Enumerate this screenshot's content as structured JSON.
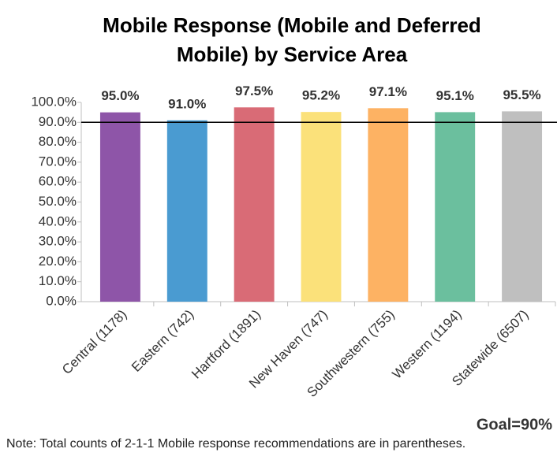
{
  "chart_data": {
    "type": "bar",
    "title": "Mobile Response (Mobile and Deferred Mobile) by Service Area",
    "categories": [
      "Central (1178)",
      "Eastern (742)",
      "Hartford (1891)",
      "New Haven (747)",
      "Southwestern (755)",
      "Western (1194)",
      "Statewide (6507)"
    ],
    "values": [
      95.0,
      91.0,
      97.5,
      95.2,
      97.1,
      95.1,
      95.5
    ],
    "value_labels": [
      "95.0%",
      "91.0%",
      "97.5%",
      "95.2%",
      "97.1%",
      "95.1%",
      "95.5%"
    ],
    "colors": [
      "#8e55a8",
      "#4a9bd1",
      "#d96b76",
      "#fbe17a",
      "#fdb263",
      "#6bbf9e",
      "#bfbfbf"
    ],
    "ylim": [
      0,
      100
    ],
    "yticks": [
      {
        "value": 0,
        "label": "0.0%"
      },
      {
        "value": 10,
        "label": "10.0%"
      },
      {
        "value": 20,
        "label": "20.0%"
      },
      {
        "value": 30,
        "label": "30.0%"
      },
      {
        "value": 40,
        "label": "40.0%"
      },
      {
        "value": 50,
        "label": "50.0%"
      },
      {
        "value": 60,
        "label": "60.0%"
      },
      {
        "value": 70,
        "label": "70.0%"
      },
      {
        "value": 80,
        "label": "80.0%"
      },
      {
        "value": 90,
        "label": "90.0%"
      },
      {
        "value": 100,
        "label": "100.0%"
      }
    ],
    "grid": false,
    "goal": 90,
    "goal_label": "Goal=90%",
    "note": "Note: Total counts of 2-1-1 Mobile response recommendations are in parentheses."
  }
}
